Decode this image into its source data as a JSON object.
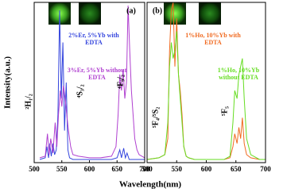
{
  "axis_labels": {
    "x": "Wavelength(nm)",
    "y": "Intensity(a.u.)"
  },
  "chart_data": [
    {
      "type": "line",
      "panel_label": "(a)",
      "xlim": [
        500,
        700
      ],
      "xticks": [
        500,
        550,
        600,
        650,
        700
      ],
      "ylim": [
        0,
        100
      ],
      "annotations": [
        "²H₁/₂",
        "⁴S₃/₂",
        "⁴F₉/₂"
      ],
      "series": [
        {
          "name": "2%Er, 5%Yb with EDTA",
          "color": "#3344dd",
          "x": [
            510,
            520,
            523,
            526,
            528,
            531,
            534,
            537,
            540,
            543,
            546,
            549,
            552,
            555,
            558,
            561,
            564,
            570,
            600,
            640,
            650,
            655,
            658,
            662,
            665,
            668,
            672,
            680,
            690,
            700
          ],
          "values": [
            2,
            3,
            10,
            3,
            12,
            4,
            12,
            5,
            8,
            30,
            95,
            40,
            75,
            20,
            50,
            8,
            3,
            2,
            2,
            2,
            3,
            8,
            3,
            9,
            3,
            6,
            2,
            2,
            2,
            2
          ]
        },
        {
          "name": "3%Er, 5%Yb without EDTA",
          "color": "#b040d0",
          "x": [
            510,
            520,
            524,
            527,
            530,
            534,
            538,
            541,
            544,
            547,
            550,
            553,
            556,
            559,
            562,
            566,
            570,
            580,
            600,
            620,
            640,
            648,
            652,
            655,
            658,
            661,
            664,
            667,
            670,
            673,
            676,
            679,
            682,
            686,
            690,
            700
          ],
          "values": [
            3,
            4,
            18,
            5,
            15,
            6,
            25,
            10,
            30,
            45,
            35,
            48,
            40,
            30,
            20,
            10,
            5,
            4,
            3,
            3,
            4,
            10,
            30,
            55,
            45,
            58,
            40,
            50,
            98,
            70,
            45,
            30,
            15,
            8,
            5,
            3
          ]
        }
      ]
    },
    {
      "type": "line",
      "panel_label": "(b)",
      "xlim": [
        500,
        700
      ],
      "xticks": [
        500,
        550,
        600,
        650,
        700
      ],
      "ylim": [
        0,
        100
      ],
      "annotations": [
        "⁵F₄/⁵S₂",
        "⁵F₅"
      ],
      "series": [
        {
          "name": "1%Ho, 10%Yb with EDTA",
          "color": "#f06a20",
          "x": [
            500,
            520,
            530,
            535,
            538,
            541,
            544,
            547,
            550,
            553,
            556,
            559,
            562,
            566,
            570,
            580,
            600,
            630,
            640,
            645,
            648,
            652,
            655,
            658,
            661,
            664,
            668,
            675,
            690,
            700
          ],
          "values": [
            2,
            3,
            5,
            15,
            70,
            95,
            100,
            60,
            90,
            55,
            45,
            30,
            10,
            4,
            3,
            2,
            2,
            2,
            3,
            10,
            18,
            12,
            22,
            15,
            28,
            12,
            5,
            3,
            2,
            2
          ]
        },
        {
          "name": "1%Ho, 10%Yb without EDTA",
          "color": "#66dd22",
          "x": [
            500,
            520,
            530,
            535,
            538,
            541,
            544,
            547,
            550,
            553,
            556,
            559,
            562,
            566,
            570,
            580,
            600,
            630,
            640,
            645,
            648,
            652,
            655,
            658,
            661,
            664,
            668,
            675,
            690,
            700
          ],
          "values": [
            2,
            3,
            5,
            25,
            60,
            75,
            65,
            70,
            82,
            55,
            40,
            25,
            10,
            4,
            3,
            2,
            2,
            2,
            4,
            25,
            45,
            40,
            55,
            60,
            65,
            40,
            15,
            5,
            2,
            2
          ]
        }
      ]
    }
  ]
}
